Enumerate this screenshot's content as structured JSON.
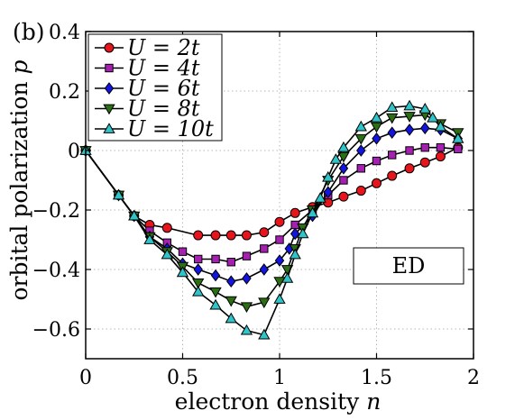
{
  "chart_data": {
    "type": "line",
    "panel_label": "(b)",
    "xlabel": "electron density n",
    "ylabel": "orbital polarization p",
    "xlim": [
      0,
      2
    ],
    "ylim": [
      -0.7,
      0.4
    ],
    "xticks": [
      0,
      0.5,
      1,
      1.5,
      2
    ],
    "xtick_labels": [
      "0",
      "0.5",
      "1",
      "1.5",
      "2"
    ],
    "yticks": [
      -0.6,
      -0.4,
      -0.2,
      0,
      0.2,
      0.4
    ],
    "ytick_labels": [
      "−0.6",
      "−0.4",
      "−0.2",
      "0",
      "0.2",
      "0.4"
    ],
    "grid": true,
    "legend_position": "top-left",
    "annotation": "ED",
    "series": [
      {
        "name": "U = 2t",
        "color": "#e8141c",
        "marker": "circle",
        "x": [
          0,
          0.17,
          0.25,
          0.33,
          0.42,
          0.58,
          0.67,
          0.75,
          0.83,
          0.92,
          1.0,
          1.08,
          1.17,
          1.25,
          1.33,
          1.42,
          1.5,
          1.58,
          1.67,
          1.75,
          1.83,
          1.92
        ],
        "y": [
          0,
          -0.15,
          -0.22,
          -0.25,
          -0.26,
          -0.285,
          -0.285,
          -0.285,
          -0.285,
          -0.275,
          -0.24,
          -0.21,
          -0.19,
          -0.175,
          -0.155,
          -0.135,
          -0.11,
          -0.085,
          -0.06,
          -0.04,
          -0.02,
          0.01
        ]
      },
      {
        "name": "U = 4t",
        "color": "#a520b0",
        "marker": "square",
        "x": [
          0,
          0.17,
          0.25,
          0.33,
          0.42,
          0.5,
          0.58,
          0.67,
          0.75,
          0.83,
          0.92,
          1.0,
          1.08,
          1.17,
          1.25,
          1.33,
          1.42,
          1.5,
          1.58,
          1.67,
          1.75,
          1.83,
          1.92
        ],
        "y": [
          0,
          -0.15,
          -0.22,
          -0.27,
          -0.31,
          -0.34,
          -0.365,
          -0.365,
          -0.375,
          -0.355,
          -0.33,
          -0.3,
          -0.25,
          -0.2,
          -0.15,
          -0.1,
          -0.06,
          -0.035,
          -0.015,
          0,
          0.01,
          0.01,
          0.005
        ]
      },
      {
        "name": "U = 6t",
        "color": "#1414e0",
        "marker": "diamond",
        "x": [
          0,
          0.17,
          0.25,
          0.33,
          0.42,
          0.5,
          0.58,
          0.67,
          0.75,
          0.83,
          0.92,
          1.0,
          1.05,
          1.08,
          1.17,
          1.25,
          1.33,
          1.42,
          1.5,
          1.58,
          1.67,
          1.75,
          1.83,
          1.92
        ],
        "y": [
          0,
          -0.15,
          -0.22,
          -0.29,
          -0.33,
          -0.38,
          -0.4,
          -0.42,
          -0.44,
          -0.43,
          -0.4,
          -0.37,
          -0.33,
          -0.28,
          -0.22,
          -0.14,
          -0.06,
          0,
          0.04,
          0.06,
          0.07,
          0.075,
          0.07,
          0.04
        ]
      },
      {
        "name": "U = 8t",
        "color": "#2c6e14",
        "marker": "triangle-down",
        "x": [
          0,
          0.17,
          0.25,
          0.33,
          0.42,
          0.5,
          0.58,
          0.67,
          0.75,
          0.83,
          0.92,
          1.0,
          1.04,
          1.08,
          1.12,
          1.17,
          1.25,
          1.33,
          1.42,
          1.5,
          1.58,
          1.67,
          1.75,
          1.83,
          1.92
        ],
        "y": [
          0,
          -0.15,
          -0.22,
          -0.29,
          -0.34,
          -0.39,
          -0.445,
          -0.475,
          -0.505,
          -0.525,
          -0.51,
          -0.44,
          -0.4,
          -0.33,
          -0.26,
          -0.2,
          -0.1,
          -0.02,
          0.04,
          0.08,
          0.11,
          0.115,
          0.12,
          0.09,
          0.06
        ]
      },
      {
        "name": "U = 10t",
        "color": "#30c4c8",
        "marker": "triangle-up",
        "x": [
          0,
          0.17,
          0.25,
          0.33,
          0.42,
          0.5,
          0.58,
          0.67,
          0.75,
          0.83,
          0.92,
          1.0,
          1.04,
          1.08,
          1.12,
          1.17,
          1.21,
          1.25,
          1.29,
          1.33,
          1.42,
          1.5,
          1.58,
          1.67,
          1.75,
          1.79,
          1.83,
          1.92
        ],
        "y": [
          0,
          -0.15,
          -0.22,
          -0.3,
          -0.35,
          -0.41,
          -0.475,
          -0.52,
          -0.565,
          -0.605,
          -0.62,
          -0.5,
          -0.43,
          -0.35,
          -0.28,
          -0.21,
          -0.16,
          -0.09,
          -0.03,
          0.01,
          0.08,
          0.11,
          0.145,
          0.15,
          0.14,
          0.11,
          0.08,
          0.04
        ]
      }
    ]
  }
}
